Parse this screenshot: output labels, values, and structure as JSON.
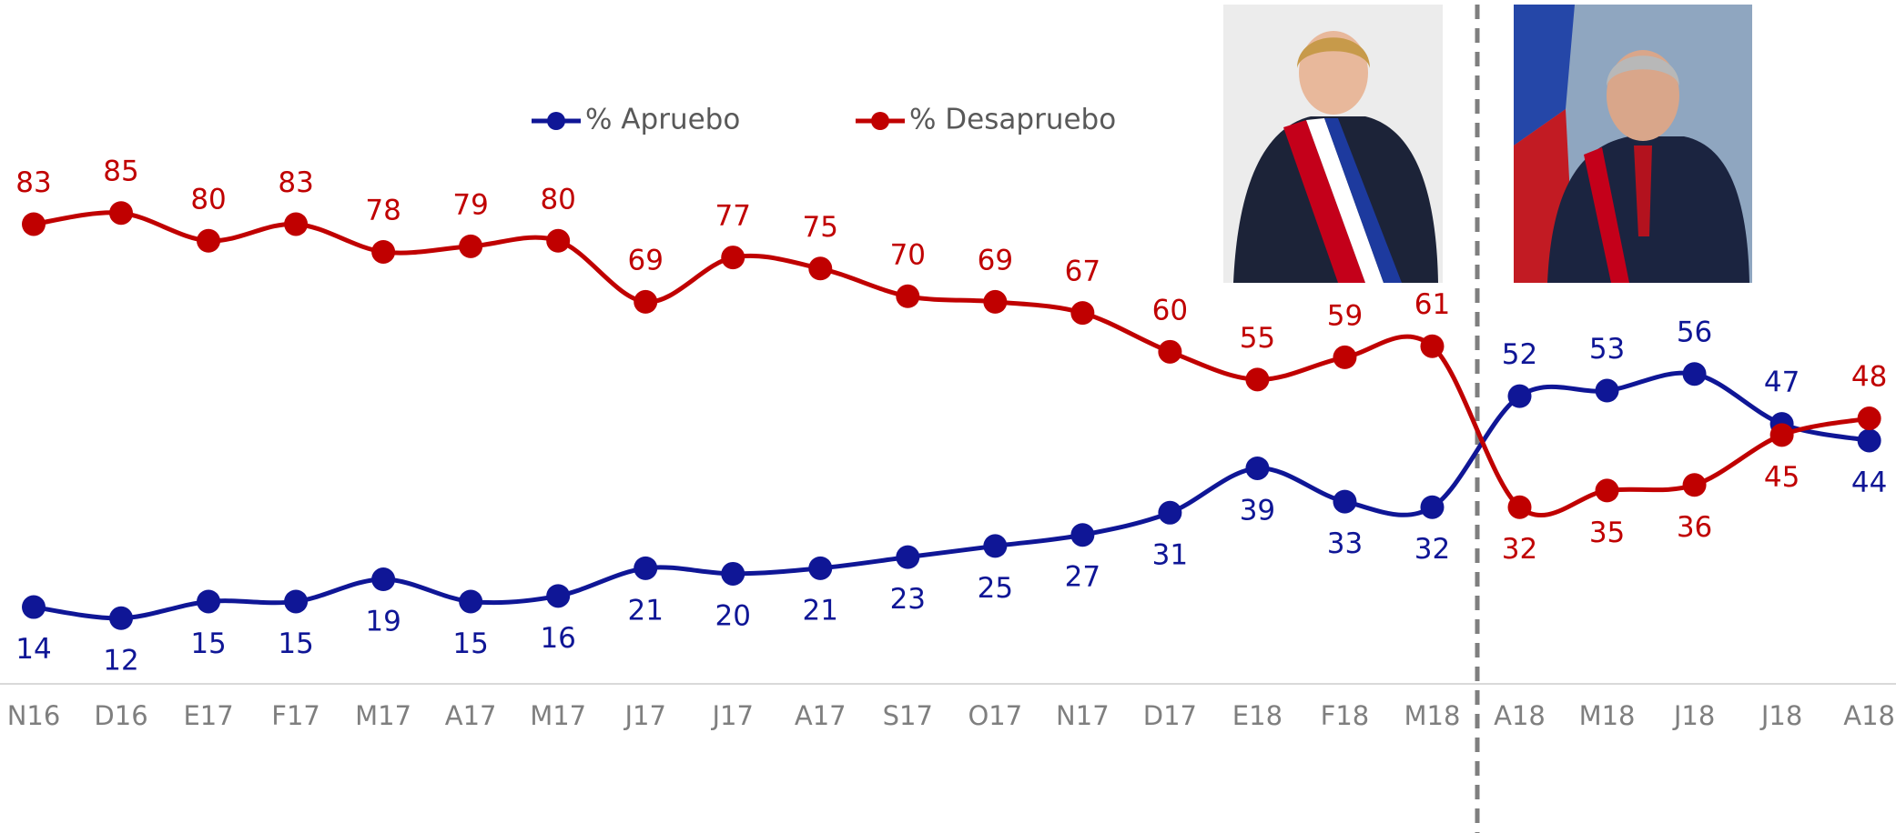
{
  "chart_data": {
    "type": "line",
    "categories": [
      "N16",
      "D16",
      "E17",
      "F17",
      "M17",
      "A17",
      "M17",
      "J17",
      "J17",
      "A17",
      "S17",
      "O17",
      "N17",
      "D17",
      "E18",
      "F18",
      "M18",
      "A18",
      "M18",
      "J18",
      "J18",
      "A18"
    ],
    "series": [
      {
        "name": "% Apruebo",
        "color": "#0f1696",
        "values": [
          14,
          12,
          15,
          15,
          19,
          15,
          16,
          21,
          20,
          21,
          23,
          25,
          27,
          31,
          39,
          33,
          32,
          52,
          53,
          56,
          47,
          44
        ]
      },
      {
        "name": "% Desapruebo",
        "color": "#c00000",
        "values": [
          83,
          85,
          80,
          83,
          78,
          79,
          80,
          69,
          77,
          75,
          70,
          69,
          67,
          60,
          55,
          59,
          61,
          32,
          35,
          36,
          45,
          48
        ]
      }
    ]
  }
}
